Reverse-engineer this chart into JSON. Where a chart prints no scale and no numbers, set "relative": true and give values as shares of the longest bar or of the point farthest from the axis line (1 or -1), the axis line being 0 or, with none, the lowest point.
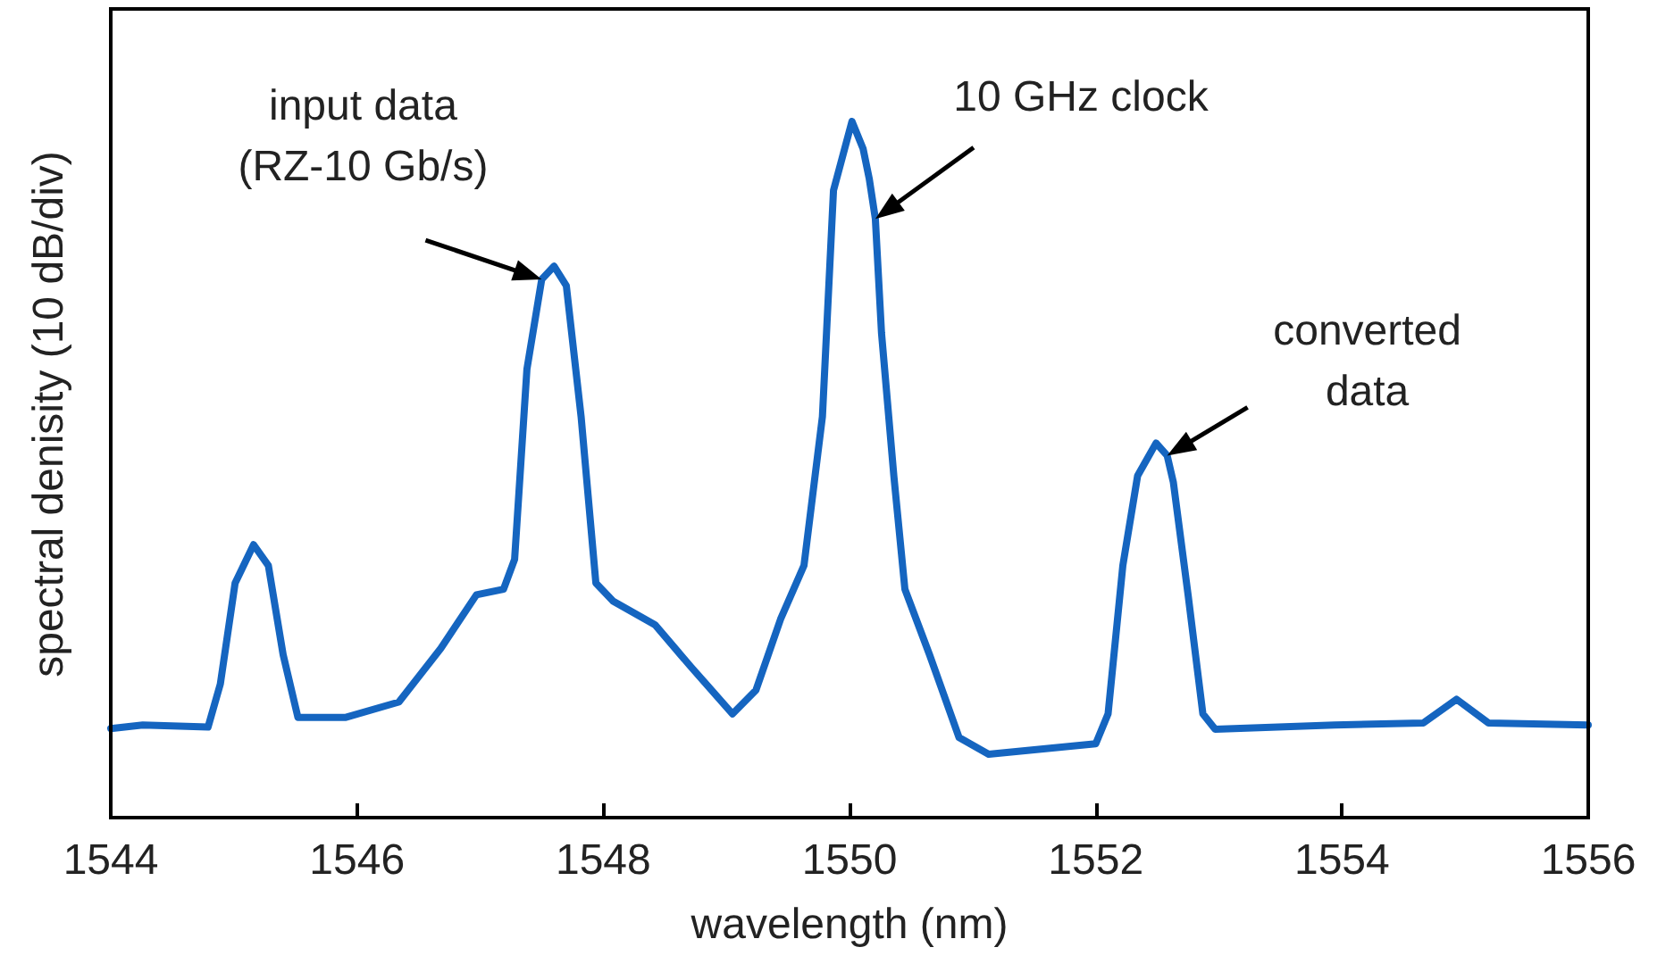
{
  "chart_data": {
    "type": "line",
    "relative": true,
    "xlabel": "wavelength (nm)",
    "ylabel": "spectral denisity (10 dB/div)",
    "xlim": [
      1544,
      1556
    ],
    "xticks": [
      1544,
      1546,
      1548,
      1550,
      1552,
      1554,
      1556
    ],
    "grid": false,
    "marker": "none",
    "line_style": "solid",
    "series": [
      {
        "color": "#1565c0",
        "x": [
          1544.0,
          1544.26,
          1544.79,
          1544.89,
          1545.01,
          1545.16,
          1545.28,
          1545.4,
          1545.52,
          1545.91,
          1546.34,
          1546.68,
          1546.97,
          1547.19,
          1547.28,
          1547.38,
          1547.5,
          1547.6,
          1547.7,
          1547.82,
          1547.94,
          1548.08,
          1548.42,
          1548.71,
          1549.05,
          1549.24,
          1549.44,
          1549.63,
          1549.78,
          1549.87,
          1550.02,
          1550.11,
          1550.16,
          1550.21,
          1550.26,
          1550.36,
          1550.45,
          1550.65,
          1550.89,
          1551.13,
          1552.0,
          1552.1,
          1552.22,
          1552.34,
          1552.49,
          1552.58,
          1552.63,
          1552.75,
          1552.87,
          1552.97,
          1553.94,
          1554.66,
          1554.93,
          1555.19,
          1556.0
        ],
        "values": [
          0.128,
          0.133,
          0.13,
          0.192,
          0.337,
          0.392,
          0.362,
          0.234,
          0.144,
          0.144,
          0.166,
          0.243,
          0.32,
          0.328,
          0.371,
          0.644,
          0.773,
          0.792,
          0.764,
          0.576,
          0.337,
          0.311,
          0.277,
          0.217,
          0.149,
          0.183,
          0.285,
          0.362,
          0.576,
          0.901,
          1.0,
          0.961,
          0.918,
          0.86,
          0.696,
          0.491,
          0.328,
          0.234,
          0.115,
          0.091,
          0.106,
          0.149,
          0.362,
          0.491,
          0.538,
          0.52,
          0.482,
          0.32,
          0.149,
          0.127,
          0.133,
          0.136,
          0.17,
          0.136,
          0.133
        ]
      }
    ],
    "annotations": [
      {
        "text": "input data\n(RZ-10 Gb/s)",
        "x": 1547.5,
        "y": 0.773
      },
      {
        "text": "10 GHz clock",
        "x": 1550.21,
        "y": 0.86
      },
      {
        "text": "converted\ndata",
        "x": 1552.58,
        "y": 0.52
      }
    ]
  }
}
